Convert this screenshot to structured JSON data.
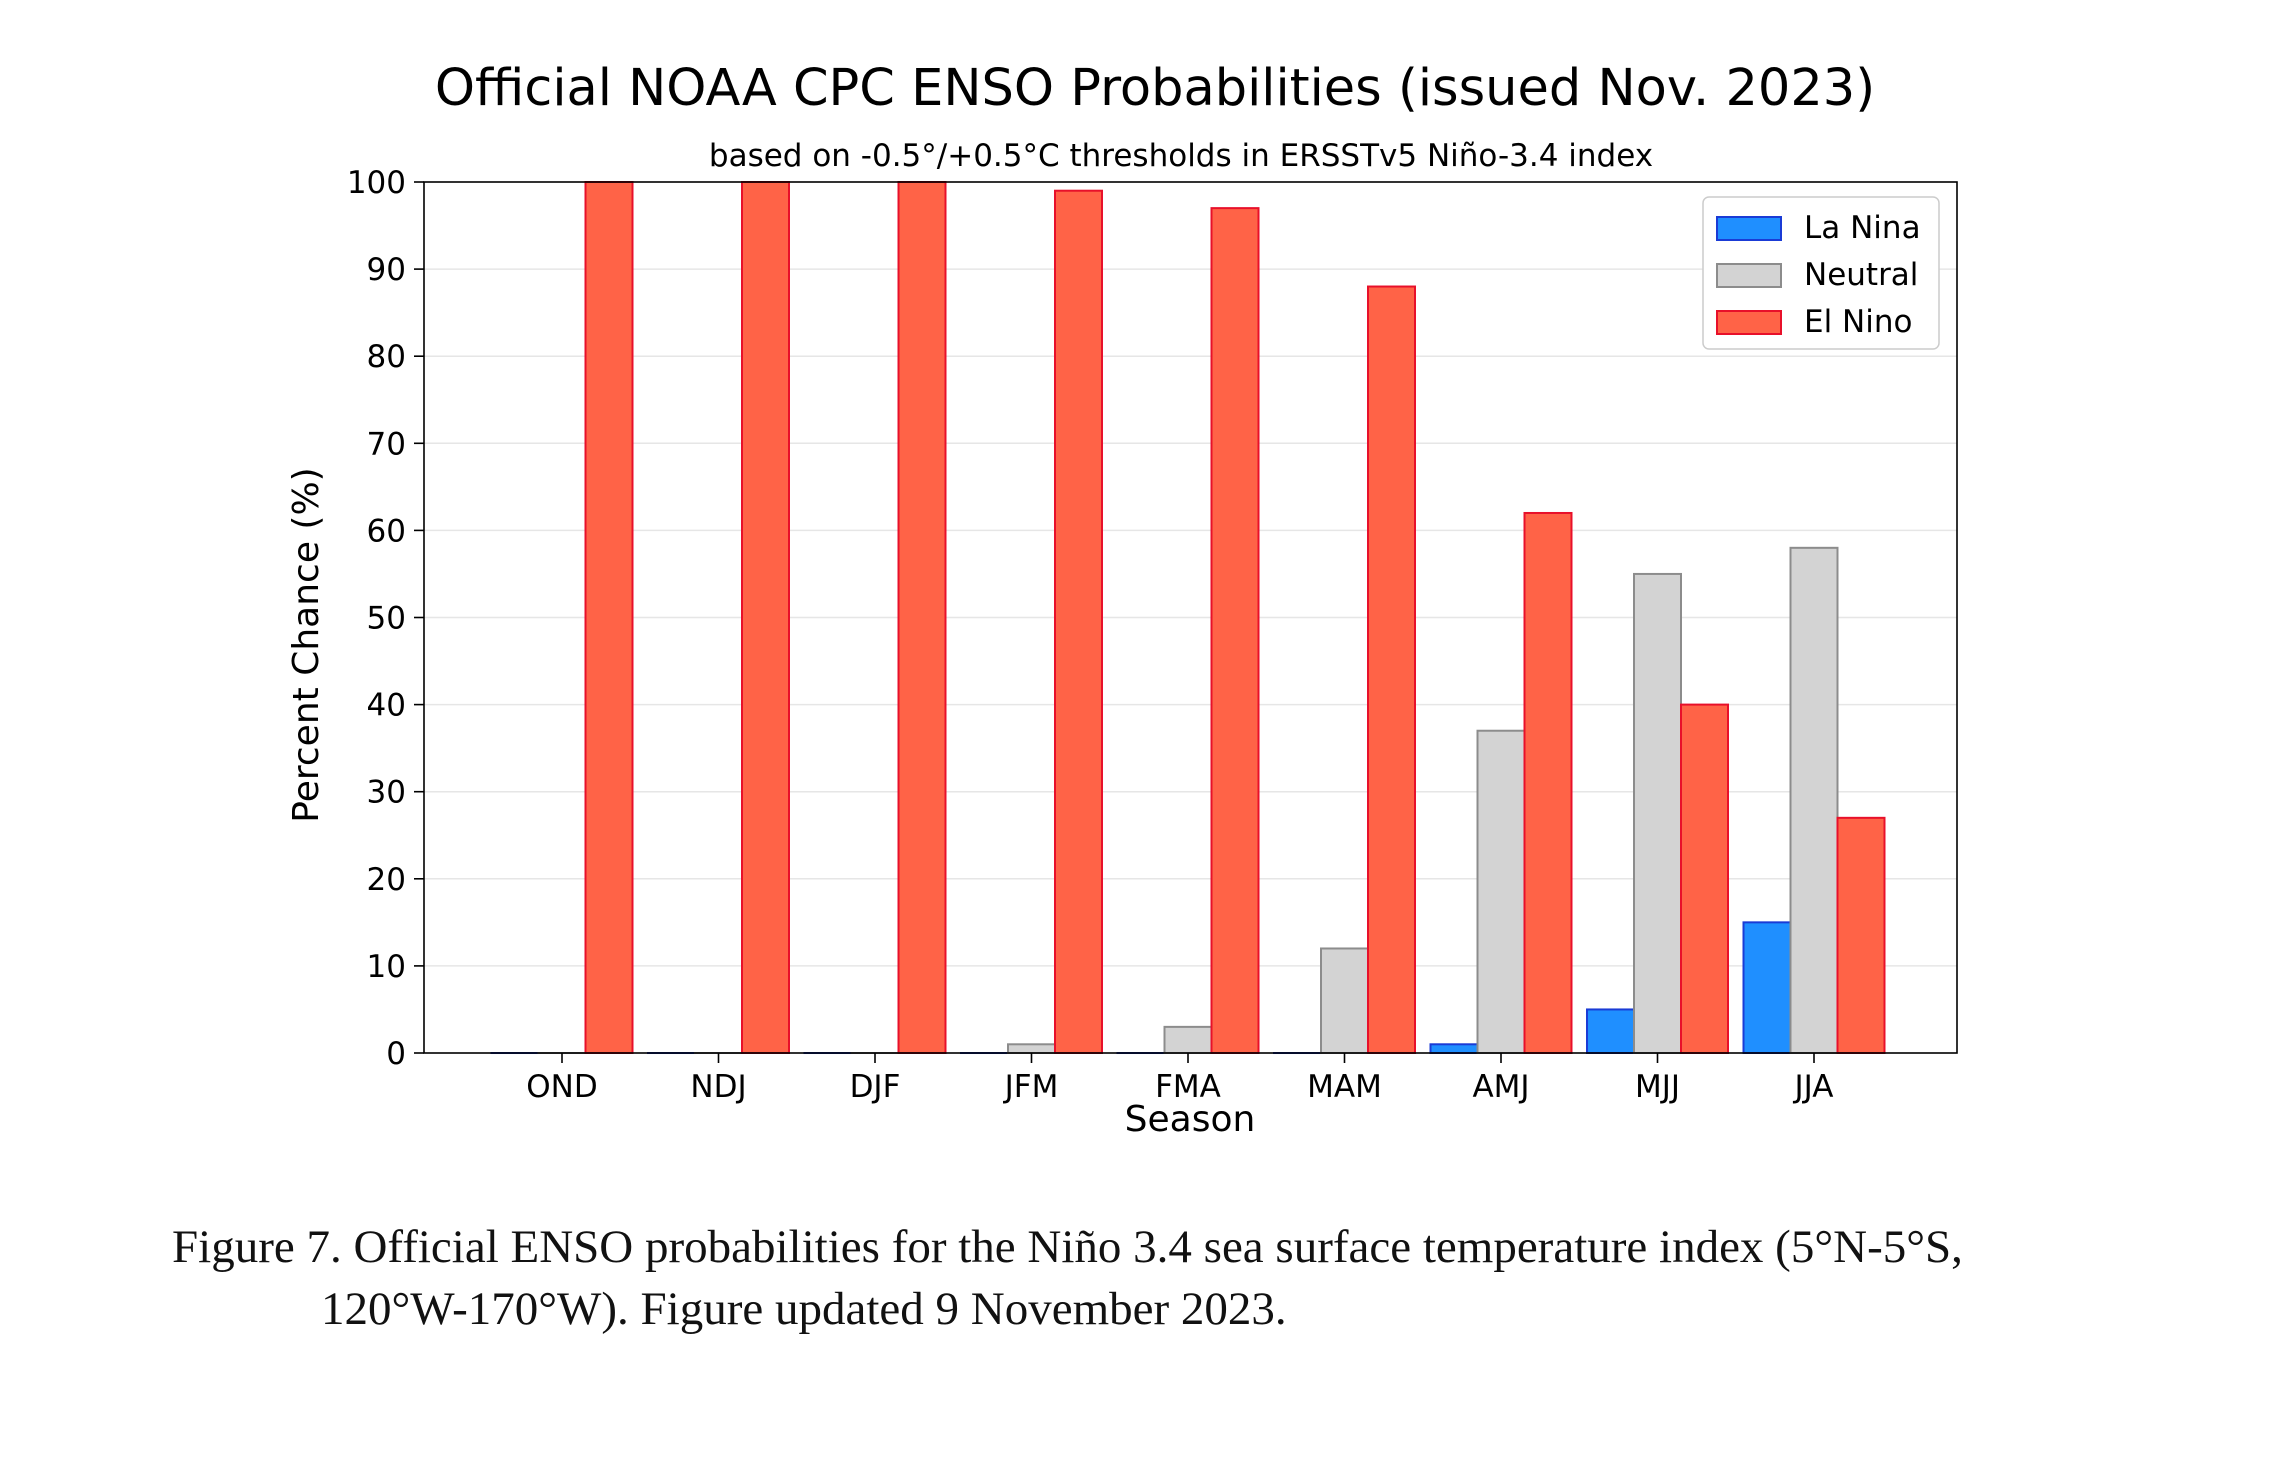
{
  "chart_data": {
    "type": "bar",
    "title": "Official NOAA CPC ENSO Probabilities (issued Nov. 2023)",
    "subtitle": "based on -0.5°/+0.5°C thresholds in ERSSTv5 Niño-3.4 index",
    "xlabel": "Season",
    "ylabel": "Percent Chance (%)",
    "ylim": [
      0,
      100
    ],
    "yticks": [
      0,
      10,
      20,
      30,
      40,
      50,
      60,
      70,
      80,
      90,
      100
    ],
    "grid": true,
    "legend_position": "top-right",
    "categories": [
      "OND",
      "NDJ",
      "DJF",
      "JFM",
      "FMA",
      "MAM",
      "AMJ",
      "MJJ",
      "JJA"
    ],
    "series": [
      {
        "name": "La Nina",
        "color": "#1f8fff",
        "edge": "#1a3bd6",
        "values": [
          0,
          0,
          0,
          0,
          0,
          0,
          1,
          5,
          15
        ]
      },
      {
        "name": "Neutral",
        "color": "#d3d3d3",
        "edge": "#8c8c8c",
        "values": [
          0,
          0,
          0,
          1,
          3,
          12,
          37,
          55,
          58
        ]
      },
      {
        "name": "El Nino",
        "color": "#ff6347",
        "edge": "#e8102a",
        "values": [
          100,
          100,
          100,
          99,
          97,
          88,
          62,
          40,
          27
        ]
      }
    ]
  },
  "caption": {
    "line1": "Figure 7. Official ENSO probabilities for the Niño 3.4 sea surface temperature index (5°N-5°S,",
    "line2": "120°W-170°W). Figure updated 9 November 2023."
  }
}
